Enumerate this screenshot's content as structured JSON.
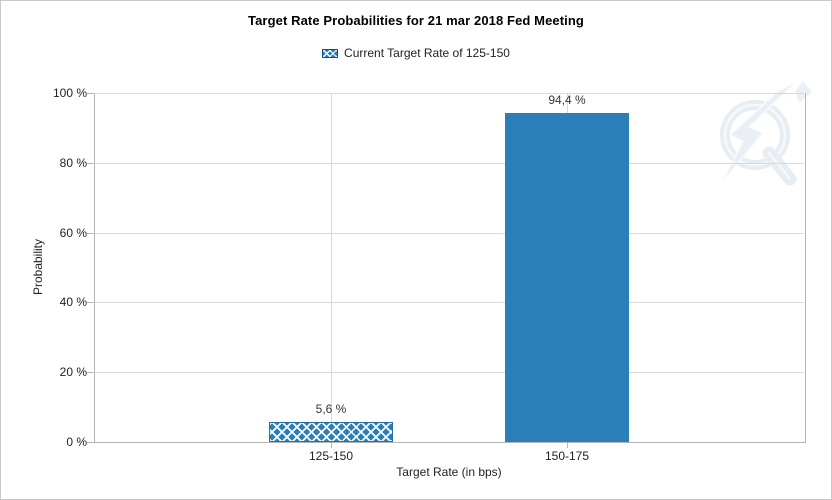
{
  "title": "Target Rate Probabilities for 21 mar 2018 Fed Meeting",
  "legend": {
    "label": "Current Target Rate of 125-150",
    "swatch_style": "crosshatch"
  },
  "axes": {
    "y_title": "Probability",
    "x_title": "Target Rate (in bps)"
  },
  "watermark_icon": "q-lightning-logo",
  "colors": {
    "bar": "#2b7fb8",
    "grid": "#d9d9d9",
    "axis": "#b5b5b5",
    "text": "#222222",
    "frame_border": "#c9c9c9"
  },
  "chart_data": {
    "type": "bar",
    "categories": [
      "125-150",
      "150-175"
    ],
    "values": [
      5.6,
      94.4
    ],
    "value_labels": [
      "5,6 %",
      "94,4 %"
    ],
    "bar_styles": [
      "crosshatch",
      "solid"
    ],
    "series": [
      {
        "name": "Current Target Rate of 125-150",
        "values": [
          5.6,
          94.4
        ]
      }
    ],
    "title": "Target Rate Probabilities for 21 mar 2018 Fed Meeting",
    "xlabel": "Target Rate (in bps)",
    "ylabel": "Probability",
    "ylim": [
      0,
      100
    ],
    "y_ticks": [
      0,
      20,
      40,
      60,
      80,
      100
    ],
    "y_tick_format": "{v} %",
    "legend_entries": [
      "Current Target Rate of 125-150"
    ],
    "legend_position": "top",
    "grid": true
  }
}
